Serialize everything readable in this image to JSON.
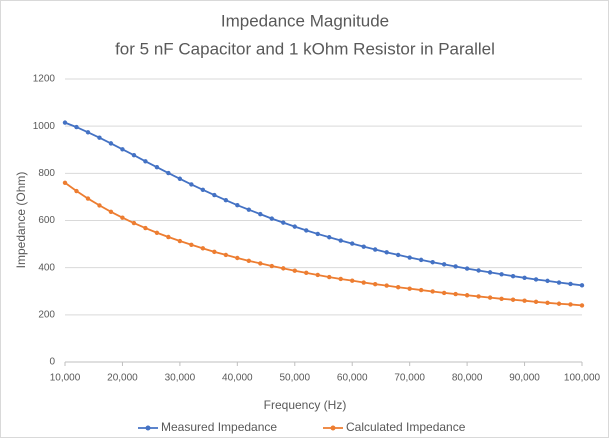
{
  "chart_data": {
    "type": "line",
    "title": "Impedance Magnitude",
    "subtitle": "for 5 nF Capacitor and 1 kOhm Resistor in Parallel",
    "xlabel": "Frequency (Hz)",
    "ylabel": "Impedance (Ohm)",
    "x": [
      10000,
      12000,
      14000,
      16000,
      18000,
      20000,
      22000,
      24000,
      26000,
      28000,
      30000,
      32000,
      34000,
      36000,
      38000,
      40000,
      42000,
      44000,
      46000,
      48000,
      50000,
      52000,
      54000,
      56000,
      58000,
      60000,
      62000,
      64000,
      66000,
      68000,
      70000,
      72000,
      74000,
      76000,
      78000,
      80000,
      82000,
      84000,
      86000,
      88000,
      90000,
      92000,
      94000,
      96000,
      98000,
      100000
    ],
    "series": [
      {
        "name": "Measured Impedance",
        "color": "#4472c4",
        "values": [
          1015,
          996,
          974,
          951,
          927,
          902,
          877,
          851,
          826,
          801,
          777,
          753,
          730,
          708,
          686,
          665,
          646,
          627,
          608,
          591,
          574,
          558,
          543,
          529,
          515,
          502,
          489,
          477,
          465,
          454,
          443,
          433,
          423,
          414,
          405,
          396,
          388,
          380,
          372,
          364,
          357,
          350,
          344,
          337,
          331,
          325
        ]
      },
      {
        "name": "Calculated Impedance",
        "color": "#ed7d31",
        "values": [
          760,
          725,
          693,
          664,
          637,
          612,
          589,
          568,
          548,
          530,
          513,
          497,
          482,
          467,
          454,
          441,
          429,
          418,
          407,
          397,
          387,
          378,
          369,
          360,
          352,
          345,
          337,
          330,
          324,
          317,
          311,
          305,
          299,
          293,
          288,
          283,
          278,
          273,
          268,
          264,
          260,
          255,
          251,
          247,
          244,
          240
        ]
      }
    ],
    "xlim": [
      10000,
      100000
    ],
    "xticks": [
      {
        "value": 10000,
        "label": "10,000"
      },
      {
        "value": 20000,
        "label": "20,000"
      },
      {
        "value": 30000,
        "label": "30,000"
      },
      {
        "value": 40000,
        "label": "40,000"
      },
      {
        "value": 50000,
        "label": "50,000"
      },
      {
        "value": 60000,
        "label": "60,000"
      },
      {
        "value": 70000,
        "label": "70,000"
      },
      {
        "value": 80000,
        "label": "80,000"
      },
      {
        "value": 90000,
        "label": "90,000"
      },
      {
        "value": 100000,
        "label": "100,000"
      }
    ],
    "ylim": [
      0,
      1200
    ],
    "yticks": [
      0,
      200,
      400,
      600,
      800,
      1000,
      1200
    ],
    "grid": true,
    "legend": "bottom"
  }
}
